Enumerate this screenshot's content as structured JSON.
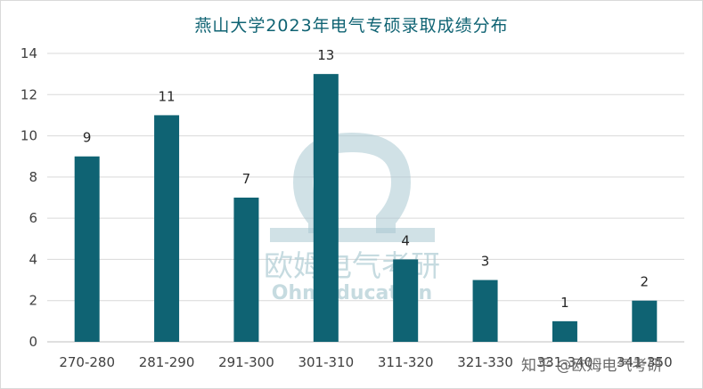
{
  "chart_data": {
    "type": "bar",
    "title": "燕山大学2023年电气专硕录取成绩分布",
    "xlabel": "",
    "ylabel": "",
    "categories": [
      "270-280",
      "281-290",
      "291-300",
      "301-310",
      "311-320",
      "321-330",
      "331-340",
      "341-350"
    ],
    "values": [
      9,
      11,
      7,
      13,
      4,
      3,
      1,
      2
    ],
    "ylim": [
      0,
      14
    ],
    "yticks": [
      0,
      2,
      4,
      6,
      8,
      10,
      12,
      14
    ],
    "grid": true,
    "legend": "none",
    "bar_color": "#0f6373"
  },
  "watermark": {
    "logo_cn": "欧姆电气考研",
    "logo_en": "OhmEducation",
    "credit": "知乎 @欧姆电气考研"
  }
}
